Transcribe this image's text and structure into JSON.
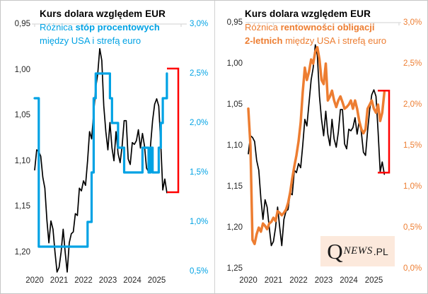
{
  "window": {
    "background": "#FFFFFF",
    "panel_border": "#C9C9C9",
    "axis_line_color": "#D9D9D9"
  },
  "logo": {
    "q": "Q",
    "news": "NEWS",
    "pl": ".PL",
    "background": "#FCE9DC"
  },
  "chart_data": [
    {
      "type": "line",
      "title": "Kurs dolara względem EUR",
      "subtitle_lines": [
        [
          {
            "text": "Różnica ",
            "bold": false
          },
          {
            "text": "stóp procentowych",
            "bold": true
          }
        ],
        [
          {
            "text": "między USA i strefą euro",
            "bold": false
          }
        ]
      ],
      "accent": "#00A2E4",
      "x_axis": {
        "tick_labels": [
          "2020",
          "2021",
          "2022",
          "2023",
          "2024",
          "2025"
        ],
        "start_year": 2020
      },
      "left_axis": {
        "title": "EUR/USD",
        "reversed": true,
        "range": [
          0.95,
          1.225
        ],
        "tick_labels": [
          "0,95",
          "1,00",
          "1,05",
          "1,10",
          "1,15",
          "1,20"
        ],
        "tick_values": [
          0.95,
          1.0,
          1.05,
          1.1,
          1.15,
          1.2
        ]
      },
      "right_axis": {
        "title": "różnica stóp procentowych",
        "range": [
          0.465,
          3.0
        ],
        "tick_labels": [
          "3,0%",
          "2,5%",
          "2,0%",
          "1,5%",
          "1,0%",
          "0,5%"
        ],
        "tick_values": [
          3.0,
          2.5,
          2.0,
          1.5,
          1.0,
          0.5
        ],
        "color": "#00A2E4"
      },
      "series": [
        {
          "name": "kurs-eur-usd",
          "axis": "left",
          "color": "#000000",
          "width": 1.7,
          "step": false,
          "start": 2020.0,
          "step_months": 1,
          "values": [
            1.11,
            1.088,
            1.09,
            1.095,
            1.118,
            1.13,
            1.165,
            1.19,
            1.166,
            1.175,
            1.2,
            1.222,
            1.217,
            1.2,
            1.175,
            1.2,
            1.222,
            1.19,
            1.18,
            1.178,
            1.158,
            1.16,
            1.13,
            1.133,
            1.122,
            1.127,
            1.1,
            1.068,
            1.076,
            1.048,
            1.02,
            1.005,
            0.977,
            0.99,
            1.04,
            1.068,
            1.088,
            1.058,
            1.086,
            1.1,
            1.068,
            1.092,
            1.102,
            1.084,
            1.056,
            1.056,
            1.098,
            1.104,
            1.08,
            1.082,
            1.078,
            1.066,
            1.086,
            1.07,
            1.084,
            1.108,
            1.112,
            1.082,
            1.056,
            1.038,
            1.032,
            1.04,
            1.082,
            1.132,
            1.12,
            1.135
          ]
        },
        {
          "name": "roznica-stop-procentowych-usa-eurozone",
          "axis": "right",
          "color": "#00A2E4",
          "width": 3.2,
          "step": true,
          "start": 2020.0,
          "step_months": 1,
          "values": [
            2.25,
            2.25,
            0.75,
            0.75,
            0.75,
            0.75,
            0.75,
            0.75,
            0.75,
            0.75,
            0.75,
            0.75,
            0.75,
            0.75,
            0.75,
            0.75,
            0.75,
            0.75,
            0.75,
            0.75,
            0.75,
            0.75,
            0.75,
            0.75,
            0.75,
            0.75,
            1.0,
            1.0,
            1.5,
            2.25,
            2.5,
            2.5,
            2.5,
            2.5,
            2.5,
            2.5,
            2.5,
            2.25,
            2.0,
            2.0,
            2.0,
            1.75,
            1.75,
            1.75,
            1.5,
            1.5,
            1.5,
            1.5,
            1.5,
            1.5,
            1.5,
            1.5,
            1.5,
            1.75,
            1.75,
            1.75,
            1.5,
            1.75,
            1.5,
            1.5,
            1.5,
            1.75,
            2.0,
            2.25,
            2.25,
            2.5
          ]
        }
      ],
      "bracket": {
        "color": "#FF0000",
        "top_pct": 2.55,
        "bottom_pct": 1.3
      }
    },
    {
      "type": "line",
      "title": "Kurs dolara względem EUR",
      "subtitle_lines": [
        [
          {
            "text": "Różnica ",
            "bold": false
          },
          {
            "text": "rentowności obligacji",
            "bold": true
          }
        ],
        [
          {
            "text": "2-letnich",
            "bold": true
          },
          {
            "text": " między USA i strefą euro",
            "bold": false
          }
        ]
      ],
      "accent": "#ED7D31",
      "x_axis": {
        "tick_labels": [
          "2020",
          "2021",
          "2022",
          "2023",
          "2024",
          "2025"
        ],
        "start_year": 2020
      },
      "left_axis": {
        "title": "EUR/USD",
        "reversed": true,
        "range": [
          0.95,
          1.25
        ],
        "tick_labels": [
          "0,95",
          "1,00",
          "1,05",
          "1,10",
          "1,15",
          "1,20",
          "1,25"
        ],
        "tick_values": [
          0.95,
          1.0,
          1.05,
          1.1,
          1.15,
          1.2,
          1.25
        ]
      },
      "right_axis": {
        "title": "różnica rentowności obligacji 2-letnich",
        "range": [
          0.0,
          3.0
        ],
        "tick_labels": [
          "3,0%",
          "2,5%",
          "2,0%",
          "1,5%",
          "1,0%",
          "0,5%",
          "0,0%"
        ],
        "tick_values": [
          3.0,
          2.5,
          2.0,
          1.5,
          1.0,
          0.5,
          0.0
        ],
        "color": "#ED7D31"
      },
      "series": [
        {
          "name": "kurs-eur-usd",
          "axis": "left",
          "color": "#000000",
          "width": 1.7,
          "step": false,
          "start": 2020.0,
          "step_months": 1,
          "values": [
            1.11,
            1.088,
            1.09,
            1.095,
            1.118,
            1.13,
            1.165,
            1.19,
            1.166,
            1.175,
            1.2,
            1.222,
            1.217,
            1.2,
            1.175,
            1.2,
            1.222,
            1.19,
            1.18,
            1.178,
            1.158,
            1.16,
            1.13,
            1.133,
            1.122,
            1.127,
            1.1,
            1.068,
            1.076,
            1.048,
            1.02,
            1.005,
            0.977,
            0.99,
            1.04,
            1.068,
            1.088,
            1.058,
            1.086,
            1.1,
            1.068,
            1.092,
            1.102,
            1.084,
            1.056,
            1.056,
            1.098,
            1.104,
            1.08,
            1.082,
            1.078,
            1.066,
            1.086,
            1.07,
            1.084,
            1.108,
            1.112,
            1.082,
            1.056,
            1.038,
            1.032,
            1.04,
            1.082,
            1.132,
            1.12,
            1.135
          ]
        },
        {
          "name": "roznica-rentownosci-obligacji-2-letnich",
          "axis": "right",
          "color": "#ED7D31",
          "width": 3.5,
          "step": false,
          "start": 2020.0,
          "step_months": 1,
          "values": [
            1.95,
            1.5,
            0.35,
            0.3,
            0.42,
            0.5,
            0.45,
            0.55,
            0.52,
            0.48,
            0.55,
            0.57,
            0.62,
            0.58,
            0.7,
            0.68,
            0.65,
            0.68,
            0.72,
            0.8,
            0.93,
            1.1,
            1.25,
            1.38,
            1.55,
            1.78,
            2.15,
            2.45,
            2.3,
            2.4,
            2.55,
            2.5,
            2.65,
            2.7,
            2.55,
            2.3,
            2.25,
            2.5,
            2.05,
            2.1,
            2.17,
            2.05,
            1.97,
            2.05,
            2.1,
            2.03,
            1.95,
            1.97,
            2.0,
            2.05,
            1.95,
            2.05,
            1.95,
            1.8,
            1.7,
            1.65,
            1.7,
            1.95,
            2.0,
            2.05,
            1.95,
            1.9,
            2.0,
            1.8,
            1.9,
            2.15
          ]
        }
      ],
      "bracket": {
        "color": "#FF0000",
        "top_pct": 2.17,
        "bottom_pct": 1.17
      }
    }
  ]
}
